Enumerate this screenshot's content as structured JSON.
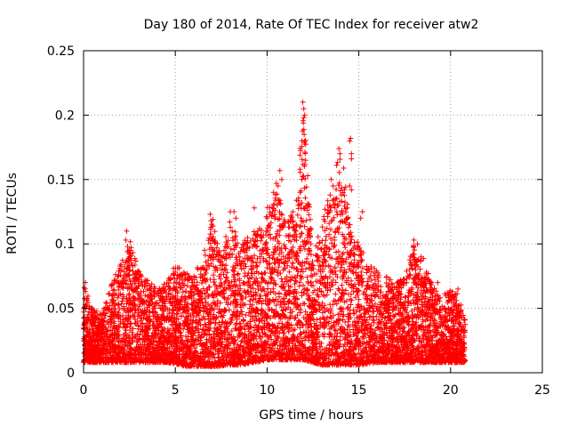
{
  "chart_data": {
    "type": "scatter",
    "title": "Day 180 of 2014, Rate Of TEC Index for receiver atw2",
    "xlabel": "GPS time / hours",
    "ylabel": "ROTI / TECUs",
    "xlim": [
      0,
      25
    ],
    "ylim": [
      0,
      0.25
    ],
    "x_ticks": [
      0,
      5,
      10,
      15,
      20,
      25
    ],
    "x_tick_labels": [
      "0",
      "5",
      "10",
      "15",
      "20",
      "25"
    ],
    "y_ticks": [
      0,
      0.05,
      0.1,
      0.15,
      0.2,
      0.25
    ],
    "y_tick_labels": [
      "0",
      "0.05",
      "0.1",
      "0.15",
      "0.2",
      "0.25"
    ],
    "grid": true,
    "marker": "+",
    "series": [
      {
        "color": "#ff0000",
        "envelope_x": [
          0.0,
          0.5,
          1.0,
          1.5,
          2.0,
          2.5,
          3.0,
          3.5,
          4.0,
          4.5,
          5.0,
          5.5,
          6.0,
          6.5,
          7.0,
          7.5,
          8.0,
          8.5,
          9.0,
          9.5,
          10.0,
          10.5,
          11.0,
          11.5,
          12.0,
          12.5,
          13.0,
          13.5,
          14.0,
          14.5,
          15.0,
          15.5,
          16.0,
          16.5,
          17.0,
          17.5,
          18.0,
          18.5,
          19.0,
          19.5,
          20.0,
          20.5,
          20.8
        ],
        "envelope_low": [
          0.008,
          0.008,
          0.008,
          0.008,
          0.008,
          0.008,
          0.008,
          0.008,
          0.008,
          0.008,
          0.007,
          0.005,
          0.005,
          0.005,
          0.005,
          0.005,
          0.006,
          0.006,
          0.007,
          0.008,
          0.01,
          0.01,
          0.01,
          0.01,
          0.01,
          0.008,
          0.006,
          0.006,
          0.006,
          0.006,
          0.006,
          0.007,
          0.008,
          0.008,
          0.008,
          0.008,
          0.008,
          0.008,
          0.008,
          0.008,
          0.008,
          0.008,
          0.008
        ],
        "envelope_high": [
          0.07,
          0.05,
          0.045,
          0.07,
          0.085,
          0.105,
          0.08,
          0.072,
          0.065,
          0.07,
          0.085,
          0.078,
          0.076,
          0.09,
          0.118,
          0.092,
          0.12,
          0.1,
          0.11,
          0.11,
          0.128,
          0.148,
          0.115,
          0.125,
          0.21,
          0.09,
          0.12,
          0.145,
          0.18,
          0.12,
          0.1,
          0.085,
          0.08,
          0.075,
          0.07,
          0.075,
          0.1,
          0.09,
          0.068,
          0.06,
          0.065,
          0.06,
          0.04
        ],
        "points": [
          [
            0.1,
            0.07
          ],
          [
            2.35,
            0.11
          ],
          [
            2.3,
            0.103
          ],
          [
            2.4,
            0.098
          ],
          [
            6.9,
            0.123
          ],
          [
            6.95,
            0.118
          ],
          [
            7.05,
            0.119
          ],
          [
            8.0,
            0.125
          ],
          [
            8.2,
            0.125
          ],
          [
            8.3,
            0.12
          ],
          [
            8.1,
            0.11
          ],
          [
            9.3,
            0.128
          ],
          [
            9.5,
            0.11
          ],
          [
            9.8,
            0.107
          ],
          [
            9.9,
            0.1
          ],
          [
            10.35,
            0.13
          ],
          [
            10.3,
            0.125
          ],
          [
            10.6,
            0.145
          ],
          [
            10.7,
            0.157
          ],
          [
            10.8,
            0.15
          ],
          [
            11.3,
            0.122
          ],
          [
            11.4,
            0.125
          ],
          [
            11.9,
            0.18
          ],
          [
            11.95,
            0.21
          ],
          [
            12.0,
            0.205
          ],
          [
            12.05,
            0.2
          ],
          [
            12.0,
            0.198
          ],
          [
            12.02,
            0.185
          ],
          [
            12.1,
            0.165
          ],
          [
            11.9,
            0.15
          ],
          [
            11.8,
            0.14
          ],
          [
            11.85,
            0.12
          ],
          [
            12.2,
            0.105
          ],
          [
            13.5,
            0.15
          ],
          [
            13.6,
            0.145
          ],
          [
            13.7,
            0.128
          ],
          [
            13.8,
            0.125
          ],
          [
            14.5,
            0.18
          ],
          [
            14.55,
            0.182
          ],
          [
            14.6,
            0.17
          ],
          [
            14.6,
            0.166
          ],
          [
            14.5,
            0.145
          ],
          [
            14.6,
            0.142
          ],
          [
            14.4,
            0.12
          ],
          [
            15.2,
            0.125
          ],
          [
            15.1,
            0.12
          ],
          [
            18.0,
            0.103
          ],
          [
            18.2,
            0.1
          ],
          [
            18.4,
            0.09
          ],
          [
            19.3,
            0.07
          ],
          [
            20.4,
            0.065
          ]
        ]
      }
    ]
  }
}
